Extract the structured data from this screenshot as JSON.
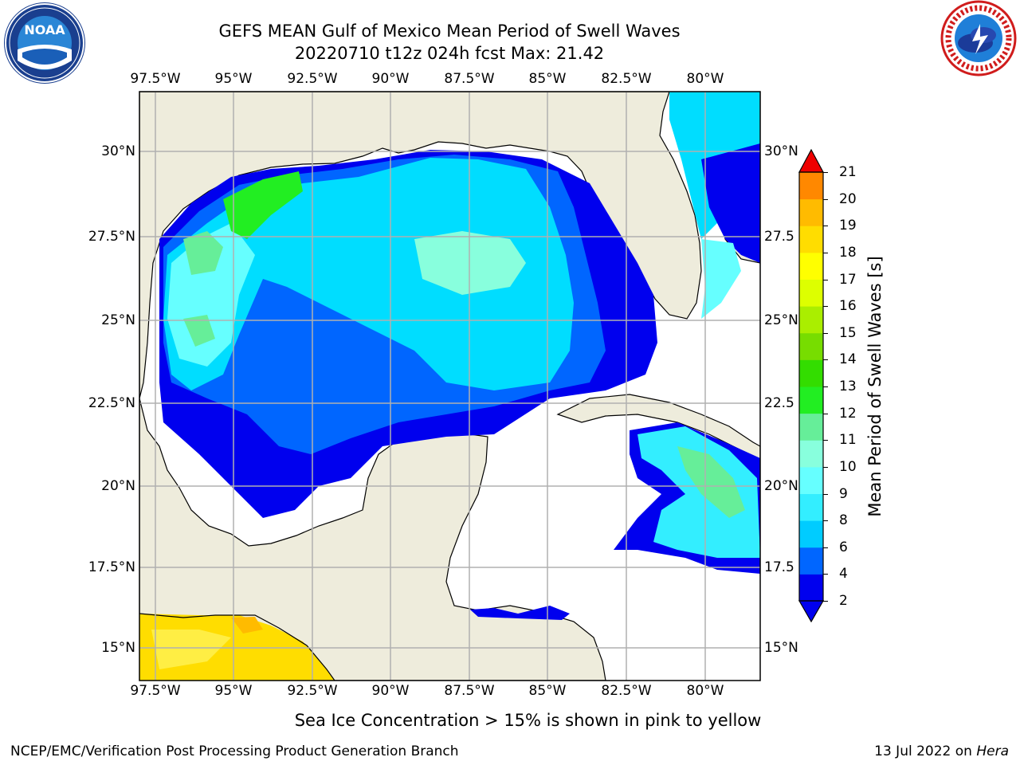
{
  "header": {
    "title_line1": "GEFS MEAN Gulf of Mexico Mean Period of Swell Waves",
    "title_line2": "20220710 t12z 024h fcst   Max: 21.42"
  },
  "logos": {
    "left": {
      "icon": "noaa-logo",
      "text": "NOAA"
    },
    "right": {
      "icon": "nws-logo"
    }
  },
  "map": {
    "lon_labels": [
      "97.5°W",
      "95°W",
      "92.5°W",
      "90°W",
      "87.5°W",
      "85°W",
      "82.5°W",
      "80°W"
    ],
    "lat_labels_left": [
      "30°N",
      "27.5°N",
      "25°N",
      "22.5°N",
      "20°N",
      "17.5°N",
      "15°N"
    ],
    "lat_labels_right": [
      "30°N",
      "27.5",
      "25°N",
      "22.5",
      "20°N",
      "17.5",
      "15°N"
    ],
    "colors": {
      "land": "#eeecdc",
      "ocean_missing": "#ffffff",
      "grid": "#b0b0b0"
    }
  },
  "colorbar": {
    "label": "Mean Period of Swell Waves [s]",
    "ticks": [
      "2",
      "4",
      "6",
      "8",
      "9",
      "10",
      "11",
      "12",
      "13",
      "14",
      "15",
      "16",
      "17",
      "18",
      "19",
      "20",
      "21"
    ],
    "colors": [
      "#0000ee",
      "#0066ff",
      "#00ccff",
      "#33eeff",
      "#66ffff",
      "#88ffdd",
      "#66ee99",
      "#22ee22",
      "#33dd00",
      "#77dd00",
      "#aaee00",
      "#ddff00",
      "#ffff00",
      "#ffdd00",
      "#ffbb00",
      "#ff8800",
      "#ff5500",
      "#ff2200",
      "#ee0000"
    ]
  },
  "caption": "Sea Ice Concentration > 15% is shown in pink to yellow",
  "footer": {
    "left": "NCEP/EMC/Verification Post Processing Product Generation Branch",
    "right_date": "13 Jul 2022 on ",
    "right_host": "Hera"
  }
}
